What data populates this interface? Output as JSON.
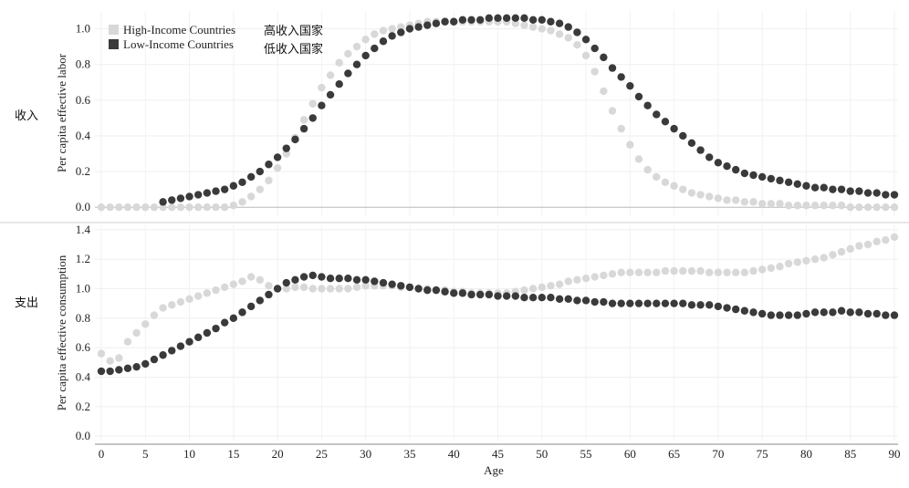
{
  "side_labels": {
    "income": "收入",
    "consumption": "支出"
  },
  "legend": [
    {
      "name": "High-Income Countries",
      "name_cn": "高收入国家",
      "color": "#d8d8d8"
    },
    {
      "name": "Low-Income Countries",
      "name_cn": "低收入国家",
      "color": "#3a3a3a"
    }
  ],
  "xlabel": "Age",
  "x_ticks": [
    "0",
    "5",
    "10",
    "15",
    "20",
    "25",
    "30",
    "35",
    "40",
    "45",
    "50",
    "55",
    "60",
    "65",
    "70",
    "75",
    "80",
    "85",
    "90"
  ],
  "chart_data": [
    {
      "type": "scatter",
      "panel": "income",
      "ylabel": "Per capita effective labor",
      "ylim": [
        -0.05,
        1.1
      ],
      "xlim": [
        0,
        90
      ],
      "y_ticks": [
        "0.0",
        "0.2",
        "0.4",
        "0.6",
        "0.8",
        "1.0"
      ],
      "y_tick_values": [
        0,
        0.2,
        0.4,
        0.6,
        0.8,
        1.0
      ],
      "grid": true,
      "series": [
        {
          "name": "High-Income Countries",
          "color": "#d8d8d8",
          "x": [
            0,
            1,
            2,
            3,
            4,
            5,
            6,
            7,
            8,
            9,
            10,
            11,
            12,
            13,
            14,
            15,
            16,
            17,
            18,
            19,
            20,
            21,
            22,
            23,
            24,
            25,
            26,
            27,
            28,
            29,
            30,
            31,
            32,
            33,
            34,
            35,
            36,
            37,
            38,
            39,
            40,
            41,
            42,
            43,
            44,
            45,
            46,
            47,
            48,
            49,
            50,
            51,
            52,
            53,
            54,
            55,
            56,
            57,
            58,
            59,
            60,
            61,
            62,
            63,
            64,
            65,
            66,
            67,
            68,
            69,
            70,
            71,
            72,
            73,
            74,
            75,
            76,
            77,
            78,
            79,
            80,
            81,
            82,
            83,
            84,
            85,
            86,
            87,
            88,
            89,
            90
          ],
          "values": [
            0,
            0,
            0,
            0,
            0,
            0,
            0,
            0,
            0,
            0,
            0,
            0,
            0,
            0,
            0,
            0.01,
            0.03,
            0.06,
            0.1,
            0.15,
            0.22,
            0.3,
            0.39,
            0.49,
            0.58,
            0.67,
            0.74,
            0.81,
            0.86,
            0.9,
            0.94,
            0.97,
            0.99,
            1.0,
            1.01,
            1.02,
            1.03,
            1.04,
            1.04,
            1.04,
            1.04,
            1.04,
            1.04,
            1.04,
            1.04,
            1.04,
            1.04,
            1.03,
            1.02,
            1.01,
            1.0,
            0.99,
            0.97,
            0.95,
            0.91,
            0.85,
            0.76,
            0.65,
            0.54,
            0.44,
            0.35,
            0.27,
            0.21,
            0.17,
            0.14,
            0.12,
            0.1,
            0.08,
            0.07,
            0.06,
            0.05,
            0.04,
            0.04,
            0.03,
            0.03,
            0.02,
            0.02,
            0.02,
            0.01,
            0.01,
            0.01,
            0.01,
            0.01,
            0.01,
            0.01,
            0.0,
            0.0,
            0.0,
            0.0,
            0.0,
            0.0
          ]
        },
        {
          "name": "Low-Income Countries",
          "color": "#3a3a3a",
          "x": [
            7,
            8,
            9,
            10,
            11,
            12,
            13,
            14,
            15,
            16,
            17,
            18,
            19,
            20,
            21,
            22,
            23,
            24,
            25,
            26,
            27,
            28,
            29,
            30,
            31,
            32,
            33,
            34,
            35,
            36,
            37,
            38,
            39,
            40,
            41,
            42,
            43,
            44,
            45,
            46,
            47,
            48,
            49,
            50,
            51,
            52,
            53,
            54,
            55,
            56,
            57,
            58,
            59,
            60,
            61,
            62,
            63,
            64,
            65,
            66,
            67,
            68,
            69,
            70,
            71,
            72,
            73,
            74,
            75,
            76,
            77,
            78,
            79,
            80,
            81,
            82,
            83,
            84,
            85,
            86,
            87,
            88,
            89,
            90
          ],
          "values": [
            0.03,
            0.04,
            0.05,
            0.06,
            0.07,
            0.08,
            0.09,
            0.1,
            0.12,
            0.14,
            0.17,
            0.2,
            0.24,
            0.28,
            0.33,
            0.38,
            0.44,
            0.5,
            0.57,
            0.63,
            0.69,
            0.75,
            0.8,
            0.85,
            0.89,
            0.93,
            0.96,
            0.98,
            1.0,
            1.01,
            1.02,
            1.03,
            1.04,
            1.04,
            1.05,
            1.05,
            1.05,
            1.06,
            1.06,
            1.06,
            1.06,
            1.06,
            1.05,
            1.05,
            1.04,
            1.03,
            1.01,
            0.98,
            0.94,
            0.89,
            0.84,
            0.78,
            0.73,
            0.68,
            0.62,
            0.57,
            0.52,
            0.48,
            0.44,
            0.4,
            0.36,
            0.32,
            0.28,
            0.25,
            0.23,
            0.21,
            0.19,
            0.18,
            0.17,
            0.16,
            0.15,
            0.14,
            0.13,
            0.12,
            0.11,
            0.11,
            0.1,
            0.1,
            0.09,
            0.09,
            0.08,
            0.08,
            0.07,
            0.07
          ]
        }
      ]
    },
    {
      "type": "scatter",
      "panel": "consumption",
      "ylabel": "Per capita effective consumption",
      "ylim": [
        -0.03,
        1.43
      ],
      "xlim": [
        0,
        90
      ],
      "y_ticks": [
        "0.0",
        "0.2",
        "0.4",
        "0.6",
        "0.8",
        "1.0",
        "1.2",
        "1.4"
      ],
      "y_tick_values": [
        0,
        0.2,
        0.4,
        0.6,
        0.8,
        1.0,
        1.2,
        1.4
      ],
      "grid": true,
      "series": [
        {
          "name": "High-Income Countries",
          "color": "#d8d8d8",
          "x": [
            0,
            1,
            2,
            3,
            4,
            5,
            6,
            7,
            8,
            9,
            10,
            11,
            12,
            13,
            14,
            15,
            16,
            17,
            18,
            19,
            20,
            21,
            22,
            23,
            24,
            25,
            26,
            27,
            28,
            29,
            30,
            31,
            32,
            33,
            34,
            35,
            36,
            37,
            38,
            39,
            40,
            41,
            42,
            43,
            44,
            45,
            46,
            47,
            48,
            49,
            50,
            51,
            52,
            53,
            54,
            55,
            56,
            57,
            58,
            59,
            60,
            61,
            62,
            63,
            64,
            65,
            66,
            67,
            68,
            69,
            70,
            71,
            72,
            73,
            74,
            75,
            76,
            77,
            78,
            79,
            80,
            81,
            82,
            83,
            84,
            85,
            86,
            87,
            88,
            89,
            90
          ],
          "values": [
            0.56,
            0.51,
            0.53,
            0.64,
            0.7,
            0.76,
            0.82,
            0.87,
            0.89,
            0.91,
            0.93,
            0.95,
            0.97,
            0.99,
            1.01,
            1.03,
            1.05,
            1.08,
            1.06,
            1.02,
            1.0,
            1.0,
            1.01,
            1.01,
            1.0,
            1.0,
            1.0,
            1.0,
            1.0,
            1.01,
            1.02,
            1.02,
            1.02,
            1.02,
            1.01,
            1.01,
            1.0,
            1.0,
            0.99,
            0.99,
            0.98,
            0.98,
            0.97,
            0.97,
            0.97,
            0.97,
            0.97,
            0.98,
            0.99,
            1.0,
            1.01,
            1.02,
            1.03,
            1.05,
            1.06,
            1.07,
            1.08,
            1.09,
            1.1,
            1.11,
            1.11,
            1.11,
            1.11,
            1.11,
            1.12,
            1.12,
            1.12,
            1.12,
            1.12,
            1.11,
            1.11,
            1.11,
            1.11,
            1.11,
            1.12,
            1.13,
            1.14,
            1.15,
            1.17,
            1.18,
            1.19,
            1.2,
            1.21,
            1.23,
            1.25,
            1.27,
            1.29,
            1.3,
            1.32,
            1.33,
            1.35
          ]
        },
        {
          "name": "Low-Income Countries",
          "color": "#3a3a3a",
          "x": [
            0,
            1,
            2,
            3,
            4,
            5,
            6,
            7,
            8,
            9,
            10,
            11,
            12,
            13,
            14,
            15,
            16,
            17,
            18,
            19,
            20,
            21,
            22,
            23,
            24,
            25,
            26,
            27,
            28,
            29,
            30,
            31,
            32,
            33,
            34,
            35,
            36,
            37,
            38,
            39,
            40,
            41,
            42,
            43,
            44,
            45,
            46,
            47,
            48,
            49,
            50,
            51,
            52,
            53,
            54,
            55,
            56,
            57,
            58,
            59,
            60,
            61,
            62,
            63,
            64,
            65,
            66,
            67,
            68,
            69,
            70,
            71,
            72,
            73,
            74,
            75,
            76,
            77,
            78,
            79,
            80,
            81,
            82,
            83,
            84,
            85,
            86,
            87,
            88,
            89,
            90
          ],
          "values": [
            0.44,
            0.44,
            0.45,
            0.46,
            0.47,
            0.49,
            0.52,
            0.55,
            0.58,
            0.61,
            0.64,
            0.67,
            0.7,
            0.73,
            0.77,
            0.8,
            0.84,
            0.88,
            0.92,
            0.96,
            1.0,
            1.04,
            1.06,
            1.08,
            1.09,
            1.08,
            1.07,
            1.07,
            1.07,
            1.06,
            1.06,
            1.05,
            1.04,
            1.03,
            1.02,
            1.01,
            1.0,
            0.99,
            0.99,
            0.98,
            0.97,
            0.97,
            0.96,
            0.96,
            0.96,
            0.95,
            0.95,
            0.95,
            0.94,
            0.94,
            0.94,
            0.94,
            0.93,
            0.93,
            0.92,
            0.92,
            0.91,
            0.91,
            0.9,
            0.9,
            0.9,
            0.9,
            0.9,
            0.9,
            0.9,
            0.9,
            0.9,
            0.89,
            0.89,
            0.89,
            0.88,
            0.87,
            0.86,
            0.85,
            0.84,
            0.83,
            0.82,
            0.82,
            0.82,
            0.82,
            0.83,
            0.84,
            0.84,
            0.84,
            0.85,
            0.84,
            0.84,
            0.83,
            0.83,
            0.82,
            0.82
          ]
        }
      ]
    }
  ]
}
